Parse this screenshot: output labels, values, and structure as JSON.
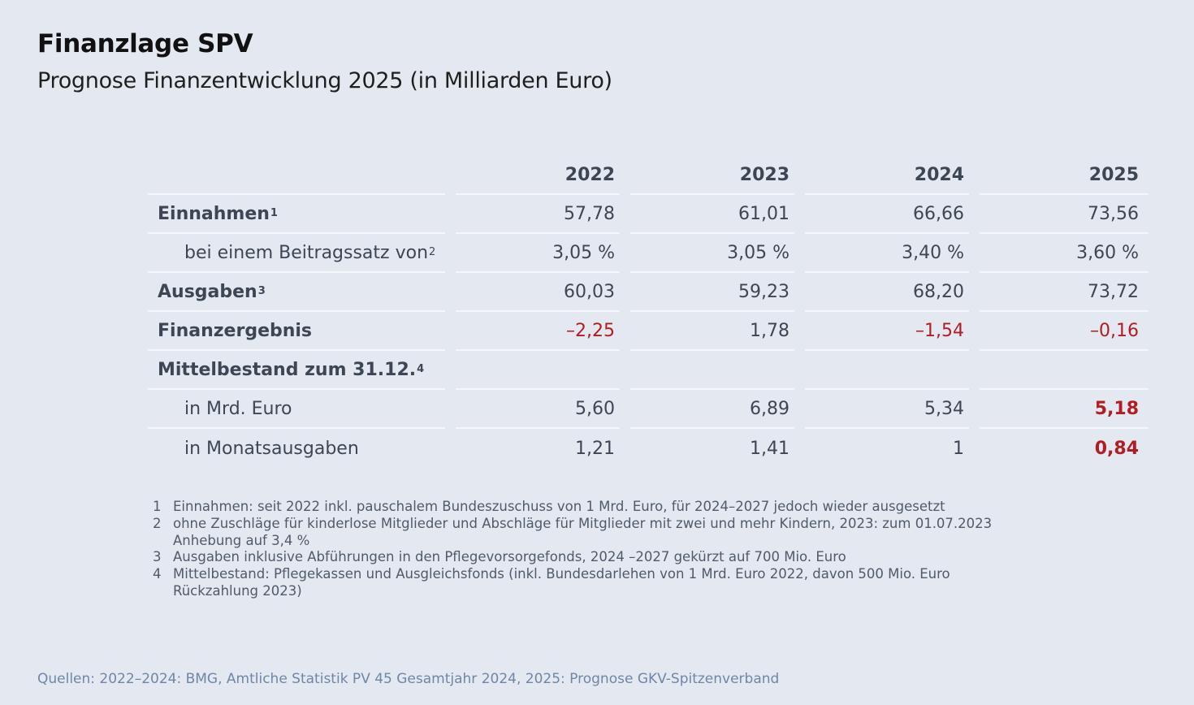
{
  "title": "Finanzlage SPV",
  "subtitle": "Prognose Finanzentwicklung 2025 (in Milliarden Euro)",
  "table": {
    "columns": [
      "2022",
      "2023",
      "2024",
      "2025"
    ],
    "rows": [
      {
        "label": "Einnahmen",
        "sup": "1",
        "values": [
          "57,78",
          "61,01",
          "66,66",
          "73,56"
        ]
      },
      {
        "label": "bei einem Beitragssatz von",
        "sup": "2",
        "values": [
          "3,05 %",
          "3,05 %",
          "3,40 %",
          "3,60 %"
        ]
      },
      {
        "label": "Ausgaben",
        "sup": "3",
        "values": [
          "60,03",
          "59,23",
          "68,20",
          "73,72"
        ]
      },
      {
        "label": "Finanzergebnis",
        "sup": "",
        "values": [
          "–2,25",
          "1,78",
          "–1,54",
          "–0,16"
        ]
      },
      {
        "label": "Mittelbestand zum 31.12.",
        "sup": "4",
        "values": [
          "",
          "",
          "",
          ""
        ]
      },
      {
        "label": "in Mrd. Euro",
        "sup": "",
        "values": [
          "5,60",
          "6,89",
          "5,34",
          "5,18"
        ]
      },
      {
        "label": "in Monatsausgaben",
        "sup": "",
        "values": [
          "1,21",
          "1,41",
          "1",
          "0,84"
        ]
      }
    ]
  },
  "footnotes": [
    {
      "num": "1",
      "text": "Einnahmen: seit 2022 inkl. pauschalem Bundeszuschuss von 1 Mrd. Euro, für 2024–2027 jedoch wieder ausgesetzt"
    },
    {
      "num": "2",
      "text": "ohne Zuschläge für kinderlose Mitglieder und Abschläge für Mitglieder mit zwei und mehr Kindern, 2023: zum 01.07.2023 Anhebung auf 3,4 %"
    },
    {
      "num": "3",
      "text": "Ausgaben inklusive Abführungen in den Pflegevorsorgefonds, 2024 –2027 gekürzt auf 700 Mio. Euro"
    },
    {
      "num": "4",
      "text": "Mittelbestand: Pflegekassen und Ausgleichsfonds (inkl. Bundesdarlehen von 1 Mrd. Euro 2022, davon 500 Mio. Euro Rückzahlung 2023)"
    }
  ],
  "source": "Quellen: 2022–2024: BMG, Amtliche Statistik PV 45 Gesamtjahr 2024, 2025: Prognose GKV-Spitzenverband",
  "colors": {
    "negative": "#b11d21",
    "text": "#3d4654",
    "background": "#e4e9f1"
  }
}
